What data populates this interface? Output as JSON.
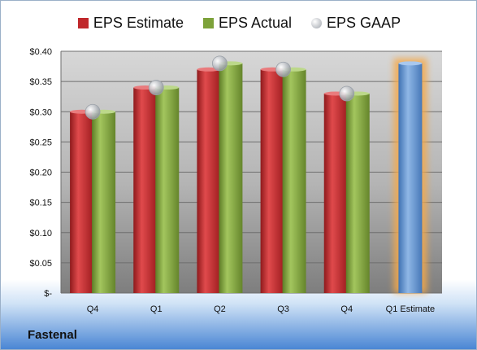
{
  "company": "Fastenal",
  "chart_data": {
    "type": "bar",
    "categories": [
      "Q4",
      "Q1",
      "Q2",
      "Q3",
      "Q4",
      "Q1 Estimate"
    ],
    "series": [
      {
        "name": "EPS Estimate",
        "values": [
          0.3,
          0.34,
          0.37,
          0.37,
          0.33,
          null
        ],
        "color": "#c0282b"
      },
      {
        "name": "EPS Actual",
        "values": [
          0.3,
          0.34,
          0.38,
          0.37,
          0.33,
          null
        ],
        "color": "#7da23a"
      },
      {
        "name": "EPS GAAP",
        "type": "marker",
        "values": [
          0.3,
          0.34,
          0.38,
          0.37,
          0.33,
          null
        ],
        "color": "#b8bcc4"
      }
    ],
    "estimate_bar": {
      "category": "Q1 Estimate",
      "value": 0.38,
      "color": "#5e91cd",
      "glow": "#f5a94a"
    },
    "ylim": [
      0,
      0.4
    ],
    "yticks": [
      0,
      0.05,
      0.1,
      0.15,
      0.2,
      0.25,
      0.3,
      0.35,
      0.4
    ],
    "ytick_labels": [
      "$-",
      "$0.05",
      "$0.10",
      "$0.15",
      "$0.20",
      "$0.25",
      "$0.30",
      "$0.35",
      "$0.40"
    ],
    "grid": true,
    "legend": "top"
  }
}
